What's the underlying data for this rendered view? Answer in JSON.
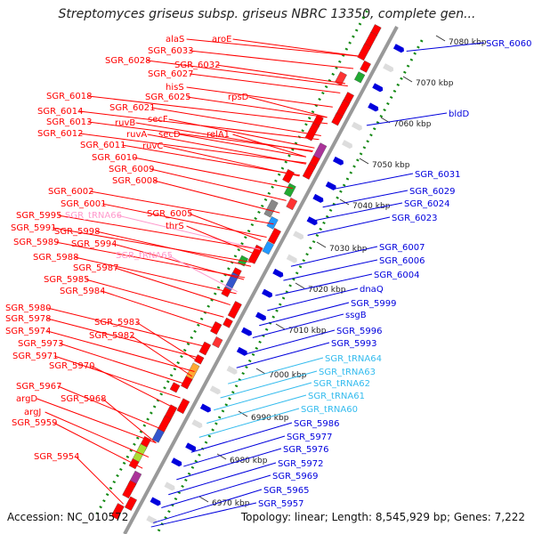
{
  "title": "Streptomyces griseus subsp. griseus NBRC 13350, complete gen...",
  "accession_label": "Accession: NC_010572",
  "topology_label": "Topology: linear; Length: 8,545,929 bp; Genes: 7,222",
  "colors": {
    "forward": "#ff0000",
    "reverse": "#0000dd",
    "trna_forward": "#ff99cc",
    "trna_reverse": "#33bbee",
    "scale_dots": "#118811",
    "backbone": "#999999"
  },
  "kbp_ticks": [
    "7080 kbp",
    "7070 kbp",
    "7060 kbp",
    "7050 kbp",
    "7040 kbp",
    "7030 kbp",
    "7020 kbp",
    "7010 kbp",
    "7000 kbp",
    "6990 kbp",
    "6980 kbp",
    "6970 kbp"
  ],
  "left_labels": [
    "alaS",
    "aroE",
    "SGR_6033",
    "SGR_6028",
    "SGR_6032",
    "SGR_6027",
    "hisS",
    "SGR_6018",
    "SGR_6025",
    "rpsD",
    "SGR_6014",
    "SGR_6021",
    "secF",
    "SGR_6013",
    "ruvB",
    "SGR_6012",
    "ruvA",
    "secD",
    "relA1",
    "SGR_6011",
    "ruvC",
    "SGR_6010",
    "SGR_6009",
    "SGR_6008",
    "SGR_6002",
    "SGR_6001",
    "SGR_6005",
    "SGR_5995",
    "SGR_tRNA66",
    "thrS",
    "SGR_5991",
    "SGR_5998",
    "SGR_5989",
    "SGR_5994",
    "SGR_5988",
    "SGR_tRNA65",
    "SGR_5987",
    "SGR_5985",
    "SGR_5984",
    "SGR_5980",
    "SGR_5978",
    "SGR_5983",
    "SGR_5974",
    "SGR_5982",
    "SGR_5973",
    "SGR_5971",
    "SGR_5970",
    "SGR_5967",
    "argD",
    "SGR_5968",
    "argJ",
    "SGR_5959",
    "SGR_5954"
  ],
  "right_labels": [
    "SGR_6060",
    "bldD",
    "SGR_6031",
    "SGR_6029",
    "SGR_6024",
    "SGR_6023",
    "SGR_6007",
    "SGR_6006",
    "SGR_6004",
    "dnaQ",
    "SGR_5999",
    "ssgB",
    "SGR_5996",
    "SGR_5993",
    "SGR_tRNA64",
    "SGR_tRNA63",
    "SGR_tRNA62",
    "SGR_tRNA61",
    "SGR_tRNA60",
    "SGR_5986",
    "SGR_5977",
    "SGR_5976",
    "SGR_5972",
    "SGR_5969",
    "SGR_5965",
    "SGR_5957"
  ]
}
